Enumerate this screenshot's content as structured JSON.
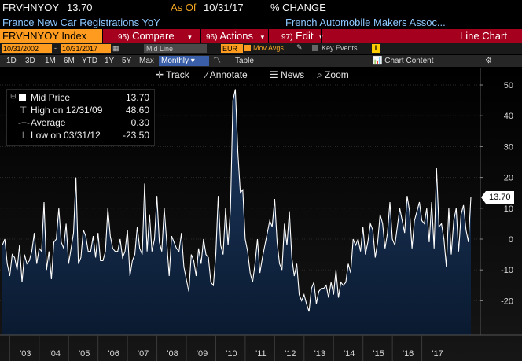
{
  "header": {
    "ticker": "FRVHNYOY",
    "last_value": "13.70",
    "as_of_label": "As Of",
    "as_of_date": "10/31/17",
    "change_label": "% CHANGE",
    "series_title": "France New Car Registrations YoY",
    "source": "French Automobile Makers Assoc..."
  },
  "command_bar": {
    "security": "FRVHNYOY Index",
    "compare_num": "95)",
    "compare_label": "Compare",
    "actions_num": "96)",
    "actions_label": "Actions",
    "edit_num": "97)",
    "edit_label": "Edit",
    "chart_type": "Line Chart"
  },
  "controls": {
    "start_date": "10/31/2002",
    "end_date": "10/31/2017",
    "line_mode": "Mid Line",
    "currency": "EUR",
    "mov_avgs": "Mov Avgs",
    "key_events": "Key Events",
    "info_icon": "i"
  },
  "ranges": {
    "items": [
      "1D",
      "3D",
      "1M",
      "6M",
      "YTD",
      "1Y",
      "5Y",
      "Max"
    ],
    "frequency": "Monthly",
    "table_label": "Table",
    "chart_content": "Chart Content"
  },
  "toolbar": {
    "track": "Track",
    "annotate": "Annotate",
    "news": "News",
    "zoom": "Zoom"
  },
  "legend": {
    "mid_label": "Mid Price",
    "mid_value": "13.70",
    "high_label": "High on 12/31/09",
    "high_value": "48.60",
    "avg_label": "Average",
    "avg_value": "0.30",
    "low_label": "Low on 03/31/12",
    "low_value": "-23.50"
  },
  "last_tag": "13.70",
  "colors": {
    "line": "#ffffff",
    "fill_top": "#1f3b63",
    "fill_bottom": "#0a1a30",
    "accent_orange": "#ff9c1f",
    "command_red": "#a5001d"
  },
  "chart_data": {
    "type": "area",
    "title": "France New Car Registrations YoY",
    "xlabel": "",
    "ylabel": "",
    "ylim": [
      -30,
      52
    ],
    "yticks": [
      -20,
      -10,
      0,
      10,
      20,
      30,
      40,
      50
    ],
    "xticks": [
      "'03",
      "'04",
      "'05",
      "'06",
      "'07",
      "'08",
      "'09",
      "'10",
      "'11",
      "'12",
      "'13",
      "'14",
      "'15",
      "'16",
      "'17"
    ],
    "x_start": "2002-10",
    "grid": true,
    "series": [
      {
        "values": [
          -2,
          0,
          -8,
          -12,
          -5,
          -6,
          -10,
          -2,
          -14,
          -5,
          -8,
          -7,
          -4,
          2,
          -8,
          -3,
          -4,
          12,
          -10,
          -4,
          -13,
          -1,
          0,
          10,
          -1,
          -3,
          5,
          -8,
          -3,
          2,
          20,
          -8,
          -6,
          3,
          1,
          -4,
          -4,
          1,
          -6,
          2,
          -7,
          -7,
          -4,
          10,
          1,
          -3,
          -4,
          -4,
          0,
          -6,
          -4,
          3,
          -12,
          -7,
          -5,
          4,
          -3,
          -5,
          18,
          -4,
          8,
          -4,
          0,
          14,
          -1,
          -4,
          10,
          -1,
          -12,
          1,
          -1,
          -3,
          -4,
          2,
          -9,
          -13,
          -17,
          -5,
          -7,
          -12,
          -3,
          -8,
          0,
          -5,
          -6,
          -14,
          -15,
          -5,
          14,
          -2,
          -5,
          10,
          -2,
          10,
          45,
          48.6,
          28,
          15,
          16,
          0,
          -4,
          -11,
          -14,
          -8,
          0,
          -11,
          -6,
          -2,
          2,
          6,
          4,
          13,
          -1,
          -8,
          -10,
          5,
          -2,
          9,
          -6,
          -12,
          -8,
          -18,
          -20,
          -18,
          -21,
          -23.5,
          -16,
          -14,
          -21,
          -17,
          -16,
          -16,
          -15,
          -19,
          -14,
          -18,
          -10,
          -19,
          -14,
          -15,
          -14,
          -8,
          -11,
          0,
          -2,
          0,
          -4,
          4,
          -5,
          -1,
          5,
          3,
          -6,
          -1,
          8,
          5,
          -3,
          2,
          12,
          0,
          -2,
          4,
          10,
          6,
          2,
          14,
          9,
          -3,
          6,
          9,
          12,
          6,
          5,
          10,
          -1,
          12,
          -3,
          23,
          4,
          5,
          0,
          -9,
          10,
          -5,
          6,
          10,
          -4,
          8,
          11,
          3,
          -1,
          13.7
        ]
      }
    ]
  }
}
